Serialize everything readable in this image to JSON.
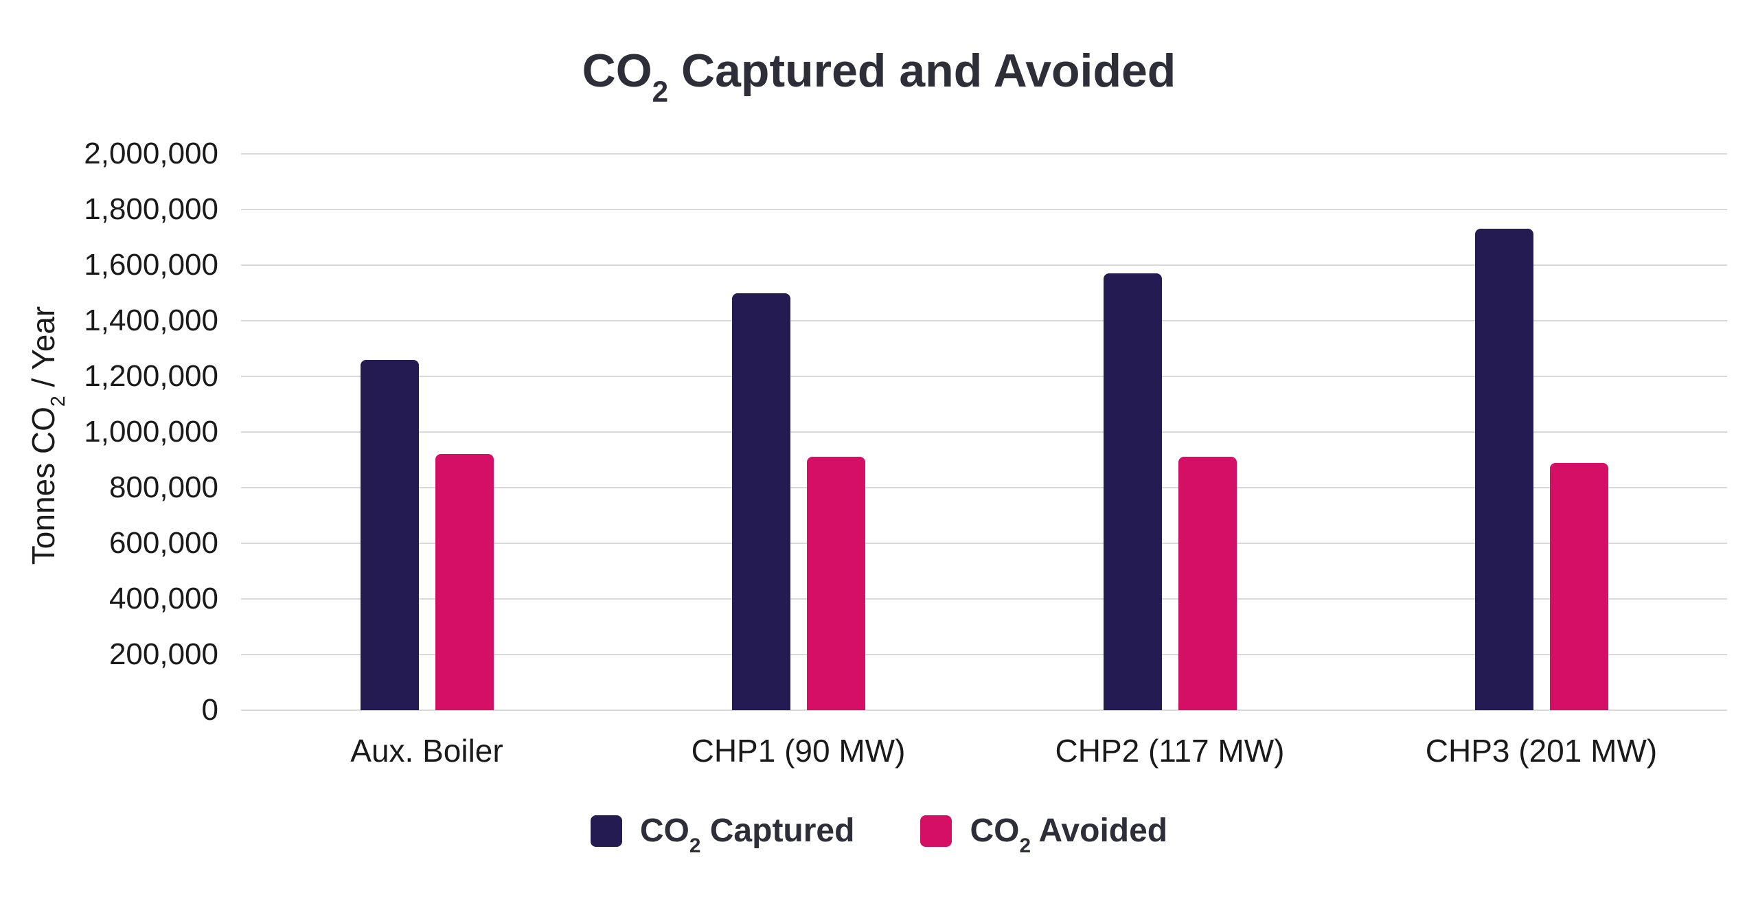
{
  "chart_data": {
    "type": "bar",
    "title": {
      "pre": "CO",
      "sub": "2",
      "post": " Captured and Avoided"
    },
    "ylabel": {
      "pre": "Tonnes CO",
      "sub": "2",
      "post": " / Year"
    },
    "categories": [
      "Aux. Boiler",
      "CHP1 (90 MW)",
      "CHP2 (117 MW)",
      "CHP3 (201 MW)"
    ],
    "series": [
      {
        "name": "CO2 Captured",
        "color": "#241B52",
        "values": [
          1260000,
          1500000,
          1570000,
          1730000
        ]
      },
      {
        "name": "CO2 Avoided",
        "color": "#D50F66",
        "values": [
          920000,
          910000,
          910000,
          890000
        ]
      }
    ],
    "legend": [
      {
        "pre": "CO",
        "sub": "2",
        "post": " Captured",
        "color": "#241B52"
      },
      {
        "pre": "CO",
        "sub": "2",
        "post": " Avoided",
        "color": "#D50F66"
      }
    ],
    "ylim": [
      0,
      2000000
    ],
    "ytick_step": 200000,
    "ytick_labels": [
      "0",
      "200,000",
      "400,000",
      "600,000",
      "800,000",
      "1,000,000",
      "1,200,000",
      "1,400,000",
      "1,600,000",
      "1,800,000",
      "2,000,000"
    ],
    "grid": true,
    "grid_color": "#D9D9D9",
    "legend_position": "bottom"
  }
}
